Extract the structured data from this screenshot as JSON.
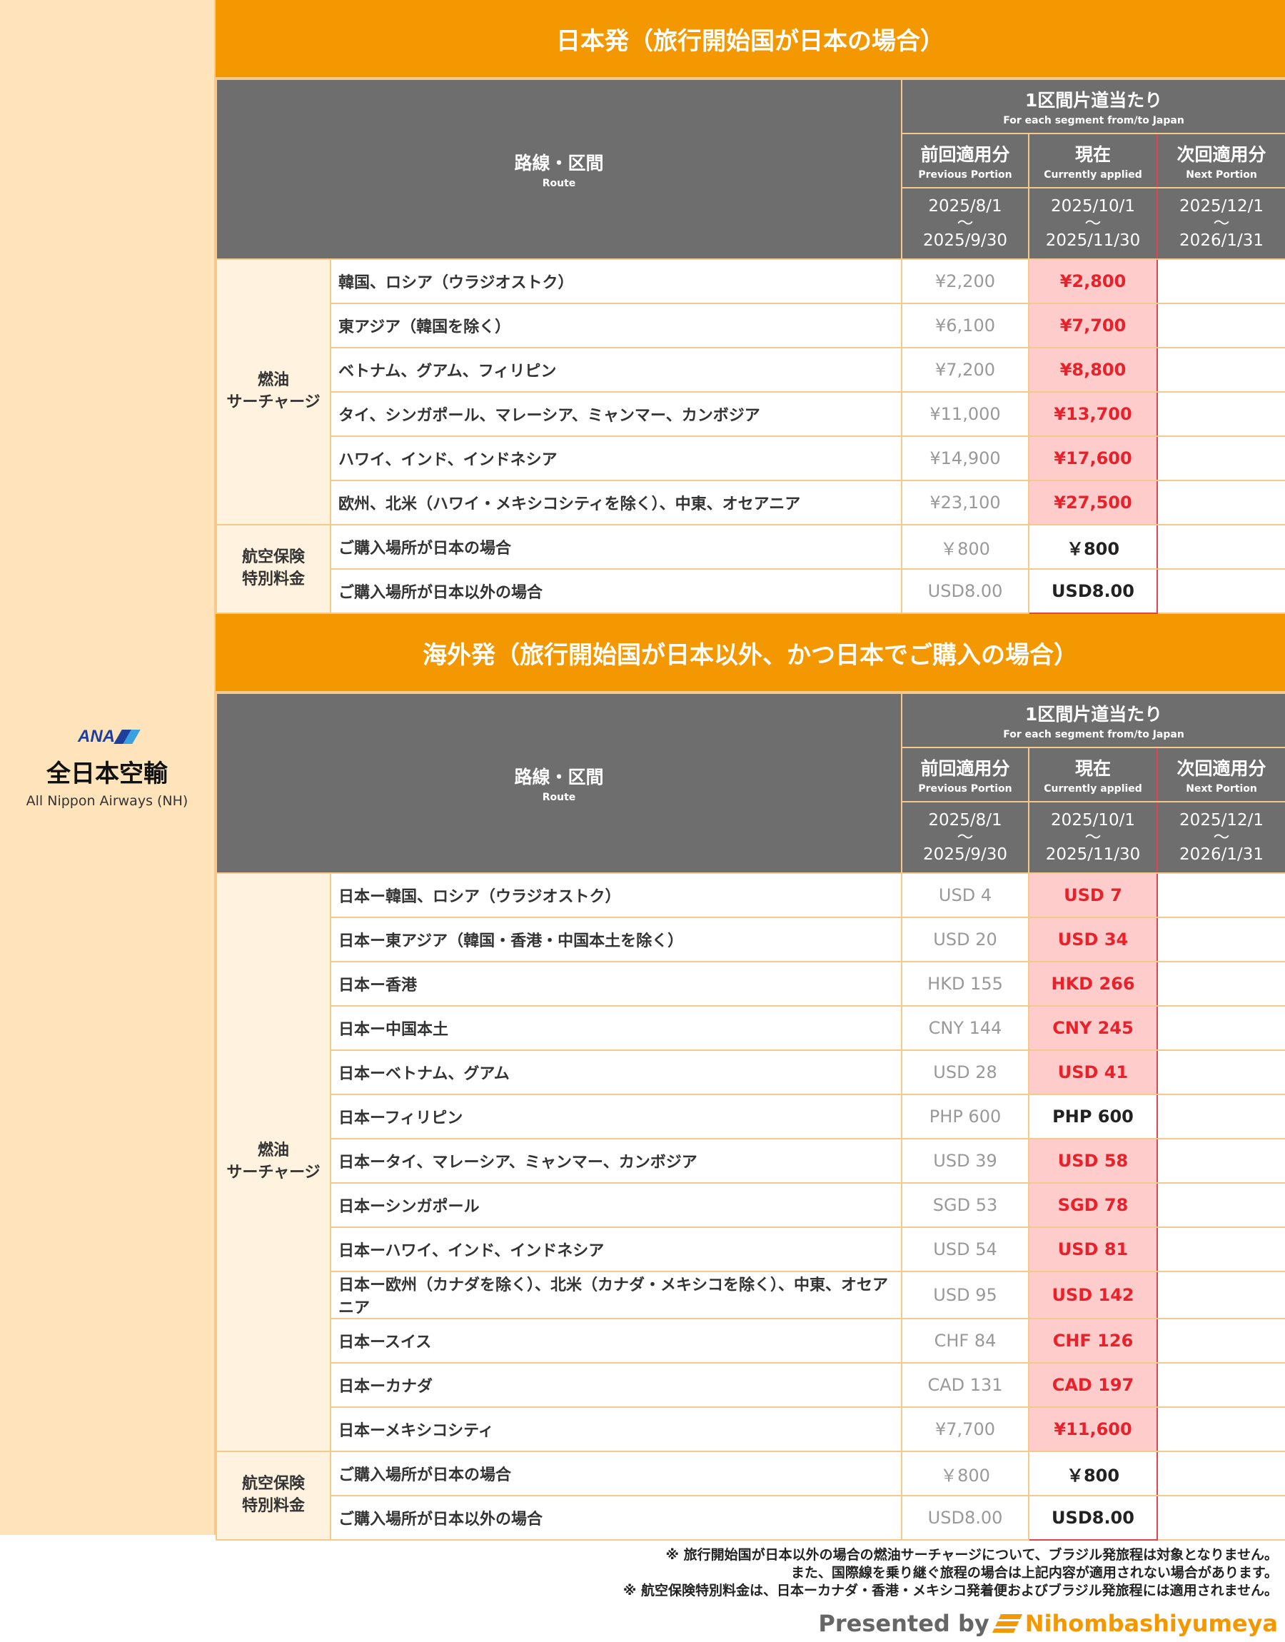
{
  "airline": {
    "logo_text": "ANA",
    "name_jp": "全日本空輸",
    "name_en": "All Nippon Airways (NH)"
  },
  "colors": {
    "accent": "#f39800",
    "header_gray": "#6e6e6e",
    "increase_red": "#e8212a",
    "increase_bg": "#ffcccc"
  },
  "header": {
    "segment_jp": "1区間片道当たり",
    "segment_en": "For each segment from/to Japan",
    "route_jp": "路線・区間",
    "route_en": "Route",
    "prev_jp": "前回適用分",
    "prev_en": "Previous Portion",
    "cur_jp": "現在",
    "cur_en": "Currently applied",
    "next_jp": "次回適用分",
    "next_en": "Next Portion",
    "prev_from": "2025/8/1",
    "prev_to": "2025/9/30",
    "cur_from": "2025/10/1",
    "cur_to": "2025/11/30",
    "next_from": "2025/12/1",
    "next_to": "2026/1/31",
    "tilde": "～"
  },
  "sections": [
    {
      "title": "日本発（旅行開始国が日本の場合）",
      "groups": [
        {
          "label": "燃油\nサーチャージ",
          "rows": [
            {
              "route": "韓国、ロシア（ウラジオストク）",
              "prev": "¥2,200",
              "cur": "¥2,800",
              "up": true,
              "next": ""
            },
            {
              "route": "東アジア（韓国を除く）",
              "prev": "¥6,100",
              "cur": "¥7,700",
              "up": true,
              "next": ""
            },
            {
              "route": "ベトナム、グアム、フィリピン",
              "prev": "¥7,200",
              "cur": "¥8,800",
              "up": true,
              "next": ""
            },
            {
              "route": "タイ、シンガポール、マレーシア、ミャンマー、カンボジア",
              "prev": "¥11,000",
              "cur": "¥13,700",
              "up": true,
              "next": ""
            },
            {
              "route": "ハワイ、インド、インドネシア",
              "prev": "¥14,900",
              "cur": "¥17,600",
              "up": true,
              "next": ""
            },
            {
              "route": "欧州、北米（ハワイ・メキシコシティを除く）、中東、オセアニア",
              "prev": "¥23,100",
              "cur": "¥27,500",
              "up": true,
              "next": ""
            }
          ]
        },
        {
          "label": "航空保険\n特別料金",
          "rows": [
            {
              "route": "ご購入場所が日本の場合",
              "prev": "￥800",
              "cur": "￥800",
              "up": false,
              "next": ""
            },
            {
              "route": "ご購入場所が日本以外の場合",
              "prev": "USD8.00",
              "cur": "USD8.00",
              "up": false,
              "next": ""
            }
          ]
        }
      ]
    },
    {
      "title": "海外発（旅行開始国が日本以外、かつ日本でご購入の場合）",
      "groups": [
        {
          "label": "燃油\nサーチャージ",
          "rows": [
            {
              "route": "日本ー韓国、ロシア（ウラジオストク）",
              "prev": "USD 4",
              "cur": "USD 7",
              "up": true,
              "next": ""
            },
            {
              "route": "日本ー東アジア（韓国・香港・中国本土を除く）",
              "prev": "USD 20",
              "cur": "USD 34",
              "up": true,
              "next": ""
            },
            {
              "route": "日本ー香港",
              "prev": "HKD 155",
              "cur": "HKD 266",
              "up": true,
              "next": ""
            },
            {
              "route": "日本ー中国本土",
              "prev": "CNY 144",
              "cur": "CNY 245",
              "up": true,
              "next": ""
            },
            {
              "route": "日本ーベトナム、グアム",
              "prev": "USD 28",
              "cur": "USD 41",
              "up": true,
              "next": ""
            },
            {
              "route": "日本ーフィリピン",
              "prev": "PHP 600",
              "cur": "PHP 600",
              "up": false,
              "next": ""
            },
            {
              "route": "日本ータイ、マレーシア、ミャンマー、カンボジア",
              "prev": "USD 39",
              "cur": "USD 58",
              "up": true,
              "next": ""
            },
            {
              "route": "日本ーシンガポール",
              "prev": "SGD 53",
              "cur": "SGD 78",
              "up": true,
              "next": ""
            },
            {
              "route": "日本ーハワイ、インド、インドネシア",
              "prev": "USD 54",
              "cur": "USD 81",
              "up": true,
              "next": ""
            },
            {
              "route": "日本ー欧州（カナダを除く）、北米（カナダ・メキシコを除く）、中東、オセアニア",
              "prev": "USD 95",
              "cur": "USD 142",
              "up": true,
              "next": ""
            },
            {
              "route": "日本ースイス",
              "prev": "CHF 84",
              "cur": "CHF 126",
              "up": true,
              "next": ""
            },
            {
              "route": "日本ーカナダ",
              "prev": "CAD 131",
              "cur": "CAD 197",
              "up": true,
              "next": ""
            },
            {
              "route": "日本ーメキシコシティ",
              "prev": "¥7,700",
              "cur": "¥11,600",
              "up": true,
              "next": ""
            }
          ]
        },
        {
          "label": "航空保険\n特別料金",
          "rows": [
            {
              "route": "ご購入場所が日本の場合",
              "prev": "￥800",
              "cur": "￥800",
              "up": false,
              "next": ""
            },
            {
              "route": "ご購入場所が日本以外の場合",
              "prev": "USD8.00",
              "cur": "USD8.00",
              "up": false,
              "next": ""
            }
          ]
        }
      ]
    }
  ],
  "footer": {
    "notes": [
      "※ 旅行開始国が日本以外の場合の燃油サーチャージについて、ブラジル発旅程は対象となりません。",
      "また、国際線を乗り継ぐ旅程の場合は上記内容が適用されない場合があります。",
      "※ 航空保険特別料金は、日本ーカナダ・香港・メキシコ発着便およびブラジル発旅程には適用されません。"
    ],
    "presented_by": "Presented by",
    "brand": "Nihombashiyumeya"
  }
}
